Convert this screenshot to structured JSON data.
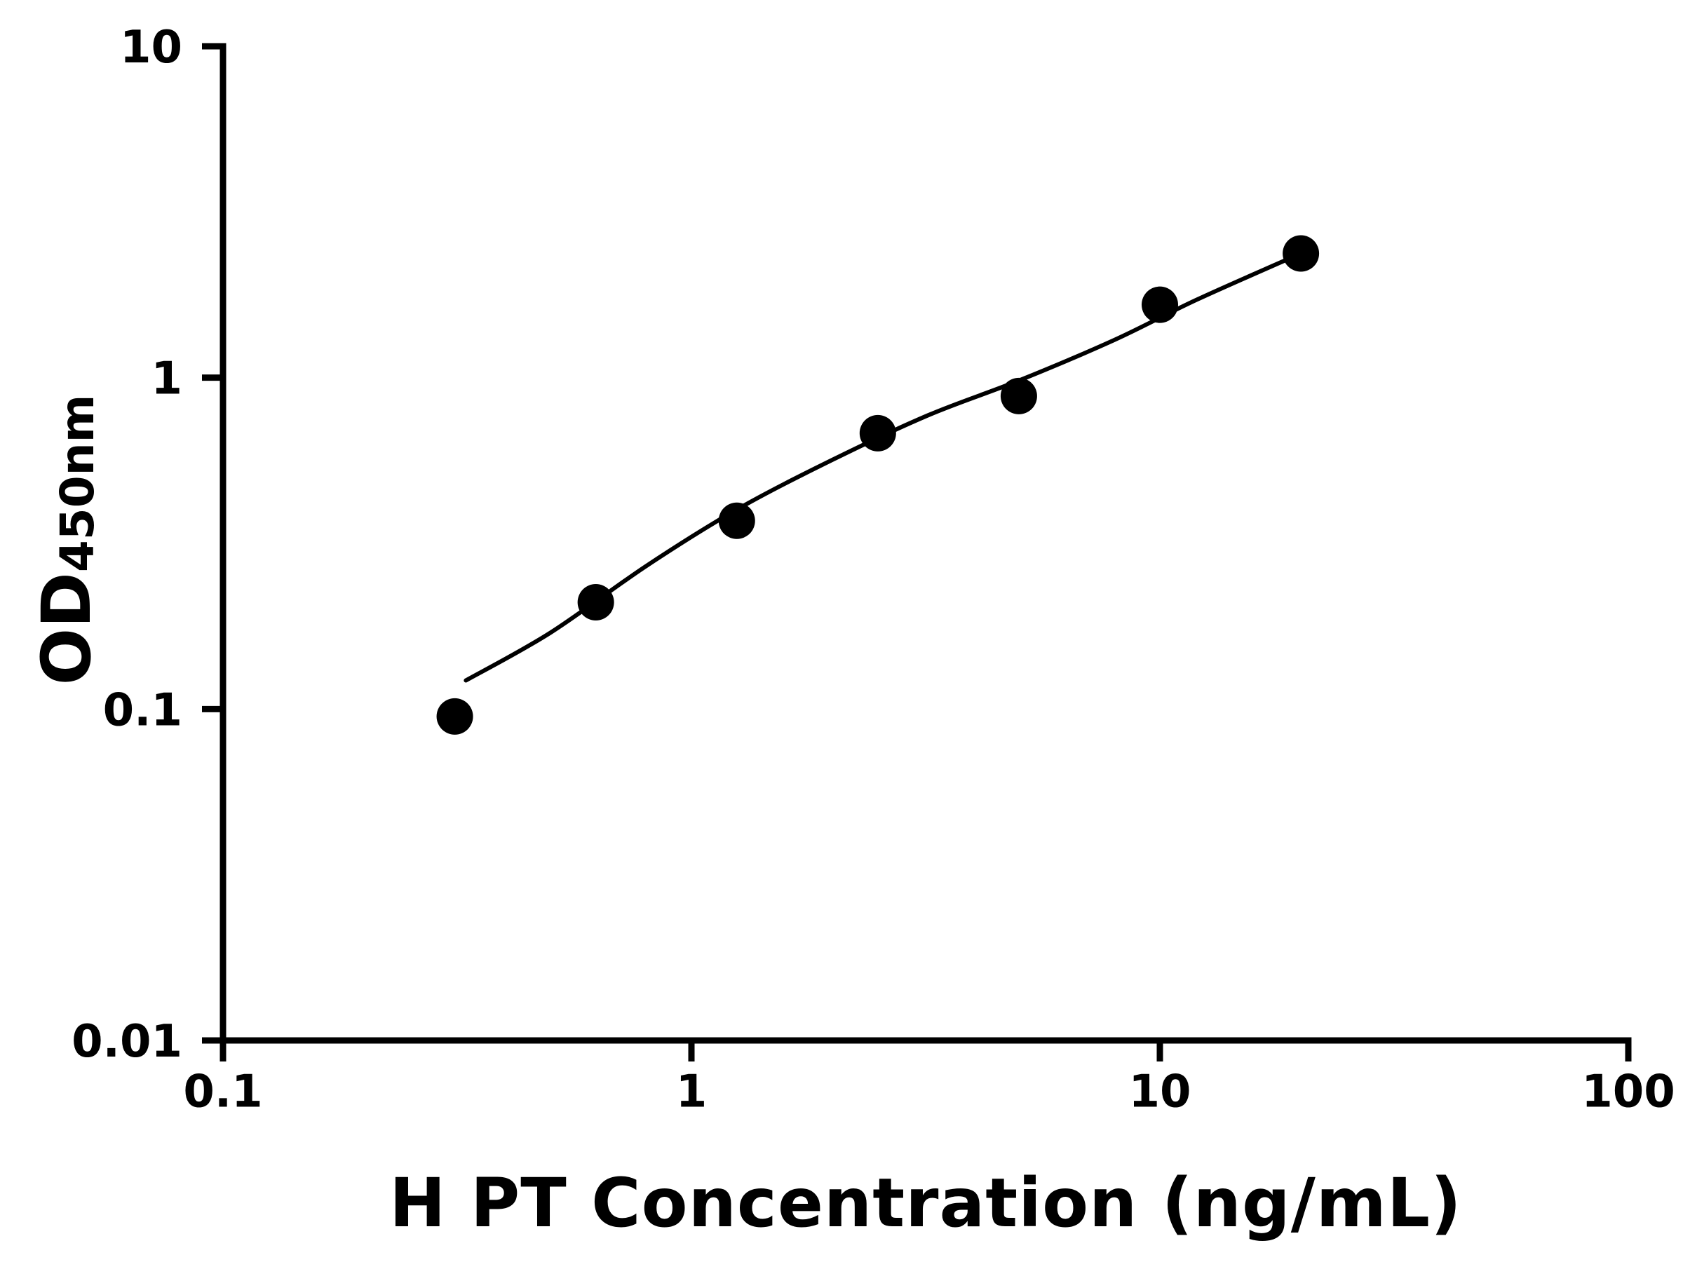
{
  "page": {
    "background_color": "#ffffff"
  },
  "chart_data": {
    "type": "scatter",
    "title": "",
    "xlabel": "H PT Concentration (ng/mL)",
    "ylabel_main": "OD",
    "ylabel_sub": "450nm",
    "x_scale": "log",
    "y_scale": "log",
    "xlim": [
      0.1,
      100
    ],
    "ylim": [
      0.01,
      10
    ],
    "grid": false,
    "legend": null,
    "axis_color": "#000000",
    "marker_color": "#000000",
    "line_color": "#000000",
    "x_ticks": [
      {
        "value": 0.1,
        "label": "0.1"
      },
      {
        "value": 1,
        "label": "1"
      },
      {
        "value": 10,
        "label": "10"
      },
      {
        "value": 100,
        "label": "100"
      }
    ],
    "y_ticks": [
      {
        "value": 0.01,
        "label": "0.01"
      },
      {
        "value": 0.1,
        "label": "0.1"
      },
      {
        "value": 1,
        "label": "1"
      },
      {
        "value": 10,
        "label": "10"
      }
    ],
    "points": [
      [
        0.3125,
        0.095
      ],
      [
        0.625,
        0.21
      ],
      [
        1.25,
        0.37
      ],
      [
        2.5,
        0.68
      ],
      [
        5,
        0.88
      ],
      [
        10,
        1.66
      ],
      [
        20,
        2.37
      ]
    ],
    "trend_line": [
      [
        0.33,
        0.122
      ],
      [
        0.5,
        0.17
      ],
      [
        0.8,
        0.27
      ],
      [
        1.25,
        0.4
      ],
      [
        2.0,
        0.565
      ],
      [
        3.2,
        0.77
      ],
      [
        5.0,
        0.98
      ],
      [
        8.0,
        1.3
      ],
      [
        12.0,
        1.72
      ],
      [
        20.0,
        2.37
      ]
    ]
  }
}
